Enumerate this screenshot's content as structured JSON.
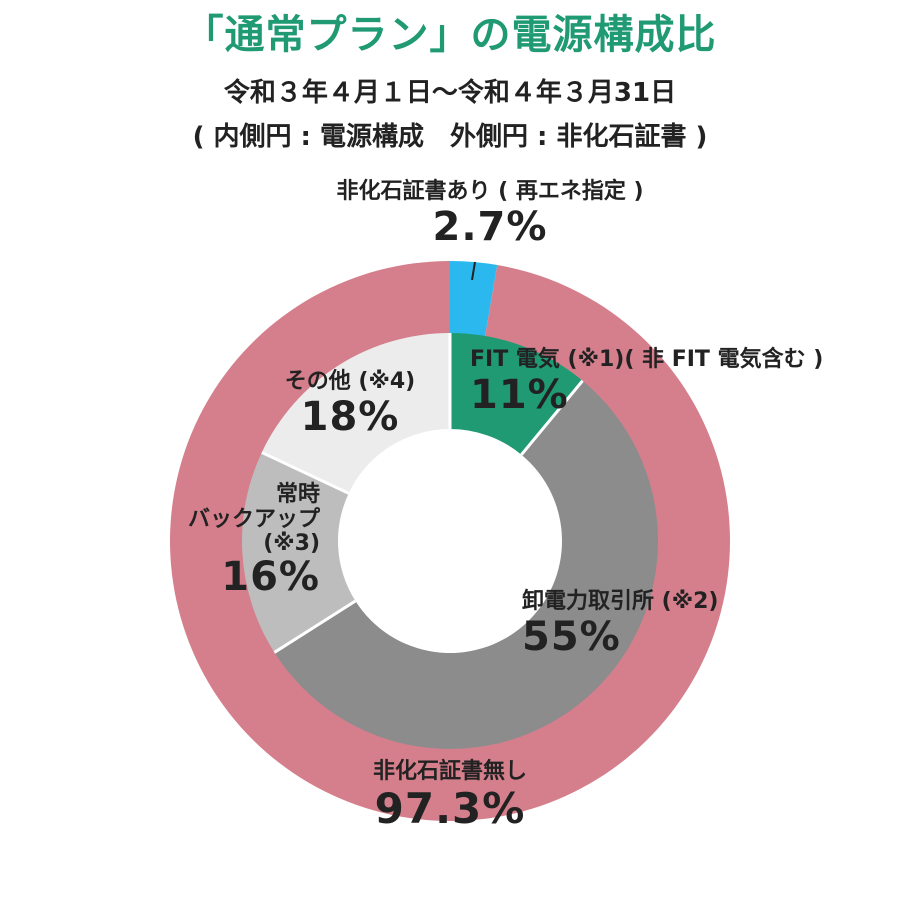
{
  "header": {
    "title": "「通常プラン」の電源構成比",
    "period": "令和３年４月１日～令和４年３月31日",
    "legend_note": "( 内側円 : 電源構成　外側円 : 非化石証書 )"
  },
  "colors": {
    "title": "#1f9a73",
    "fit": "#1f9a73",
    "jepx": "#8c8c8c",
    "backup": "#bdbdbd",
    "other": "#ececec",
    "certified": "#2bb8ee",
    "uncertified": "#d57f8c"
  },
  "chart_data": [
    {
      "type": "pie",
      "ring": "inner",
      "title": "電源構成",
      "direction": "clockwise",
      "start": "12 o'clock",
      "slices": [
        {
          "label": "FIT 電気 (※1)( 非 FIT 電気含む )",
          "value": 11,
          "display": "11%",
          "color": "#1f9a73"
        },
        {
          "label": "卸電力取引所 (※2)",
          "value": 55,
          "display": "55%",
          "color": "#8c8c8c"
        },
        {
          "label": "常時 バックアップ (※3)",
          "value": 16,
          "display": "16%",
          "color": "#bdbdbd"
        },
        {
          "label": "その他 (※4)",
          "value": 18,
          "display": "18%",
          "color": "#ececec"
        }
      ]
    },
    {
      "type": "pie",
      "ring": "outer",
      "title": "非化石証書",
      "direction": "clockwise",
      "start": "12 o'clock",
      "slices": [
        {
          "label": "非化石証書あり ( 再エネ指定 )",
          "value": 2.7,
          "display": "2.7%",
          "color": "#2bb8ee"
        },
        {
          "label": "非化石証書無し",
          "value": 97.3,
          "display": "97.3%",
          "color": "#d57f8c"
        }
      ]
    }
  ],
  "labels": {
    "fit_text": "FIT 電気 (※1)( 非 FIT 電気含む )",
    "fit_value": "11%",
    "jepx_text": "卸電力取引所 (※2)",
    "jepx_value": "55%",
    "backup_text_1": "常時",
    "backup_text_2": "バックアップ",
    "backup_text_3": "(※3)",
    "backup_value": "16%",
    "other_text": "その他 (※4)",
    "other_value": "18%",
    "cert_text": "非化石証書あり ( 再エネ指定 )",
    "cert_value": "2.7%",
    "nocert_text": "非化石証書無し",
    "nocert_value": "97.3%"
  }
}
